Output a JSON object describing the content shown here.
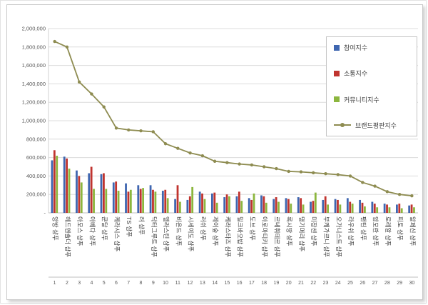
{
  "chart_data": {
    "type": "bar",
    "title": "",
    "xlabel": "",
    "ylabel": "",
    "ylim": [
      0,
      2000000
    ],
    "ytick_step": 200000,
    "ytick_labels": [
      "-",
      "200,000",
      "400,000",
      "600,000",
      "800,000",
      "1,000,000",
      "1,200,000",
      "1,400,000",
      "1,600,000",
      "1,800,000",
      "2,000,000"
    ],
    "grid": true,
    "legend_position": "top-right",
    "categories": [
      "앙방 샴푸",
      "헤드앤숄더 샴푸",
      "아모스 샴푸",
      "아베다 샴푸",
      "쿤달 샴푸",
      "케라시스 샴푸",
      "TS 샴푸",
      "려 샴푸",
      "닥터그루트 샴푸",
      "엘라스틴 샴푸",
      "비욘드 샴푸",
      "시세이도 샴푸",
      "러쉬 샴푸",
      "제이숲 샴푸",
      "케라스타즈 샴푸",
      "밀크바오밥 샴푸",
      "도브 샴푸",
      "아로마티카 샴푸",
      "르네휘테르 샴푸",
      "록시땅 샴푸",
      "댕기머리 샴푸",
      "미장센 샴푸",
      "부케가르니 샴푸",
      "오가니스트 샴푸",
      "라우쉬 샴푸",
      "팬틴 샴푸",
      "암모란 샴푸",
      "로레알 샴푸",
      "피토 샴푸",
      "알페신 샴푸"
    ],
    "rank_labels": [
      "1",
      "2",
      "3",
      "4",
      "5",
      "6",
      "7",
      "8",
      "9",
      "10",
      "11",
      "12",
      "13",
      "14",
      "15",
      "16",
      "17",
      "18",
      "19",
      "20",
      "21",
      "22",
      "23",
      "24",
      "25",
      "26",
      "27",
      "28",
      "29",
      "30"
    ],
    "series": [
      {
        "name": "참여지수",
        "type": "bar",
        "color": "#3f66b0",
        "values": [
          570000,
          610000,
          460000,
          430000,
          420000,
          330000,
          320000,
          300000,
          300000,
          240000,
          150000,
          140000,
          230000,
          210000,
          170000,
          180000,
          160000,
          190000,
          150000,
          160000,
          170000,
          120000,
          140000,
          150000,
          160000,
          140000,
          120000,
          100000,
          90000,
          80000
        ]
      },
      {
        "name": "소통지수",
        "type": "bar",
        "color": "#c0342f",
        "values": [
          680000,
          590000,
          400000,
          500000,
          430000,
          340000,
          230000,
          260000,
          250000,
          250000,
          300000,
          180000,
          210000,
          220000,
          200000,
          230000,
          140000,
          180000,
          170000,
          150000,
          160000,
          130000,
          180000,
          140000,
          120000,
          110000,
          100000,
          90000,
          100000,
          90000
        ]
      },
      {
        "name": "커뮤니티지수",
        "type": "bar",
        "color": "#8cb63e",
        "values": [
          620000,
          480000,
          330000,
          260000,
          260000,
          240000,
          250000,
          270000,
          230000,
          160000,
          120000,
          280000,
          150000,
          110000,
          180000,
          130000,
          210000,
          110000,
          120000,
          100000,
          90000,
          220000,
          90000,
          90000,
          100000,
          70000,
          60000,
          60000,
          50000,
          60000
        ]
      },
      {
        "name": "브랜드평판지수",
        "type": "line",
        "color": "#8e8c51",
        "values": [
          1860000,
          1800000,
          1420000,
          1290000,
          1150000,
          920000,
          900000,
          890000,
          880000,
          750000,
          700000,
          650000,
          620000,
          560000,
          545000,
          530000,
          520000,
          500000,
          480000,
          450000,
          445000,
          435000,
          425000,
          415000,
          400000,
          330000,
          290000,
          230000,
          200000,
          185000
        ]
      }
    ]
  }
}
